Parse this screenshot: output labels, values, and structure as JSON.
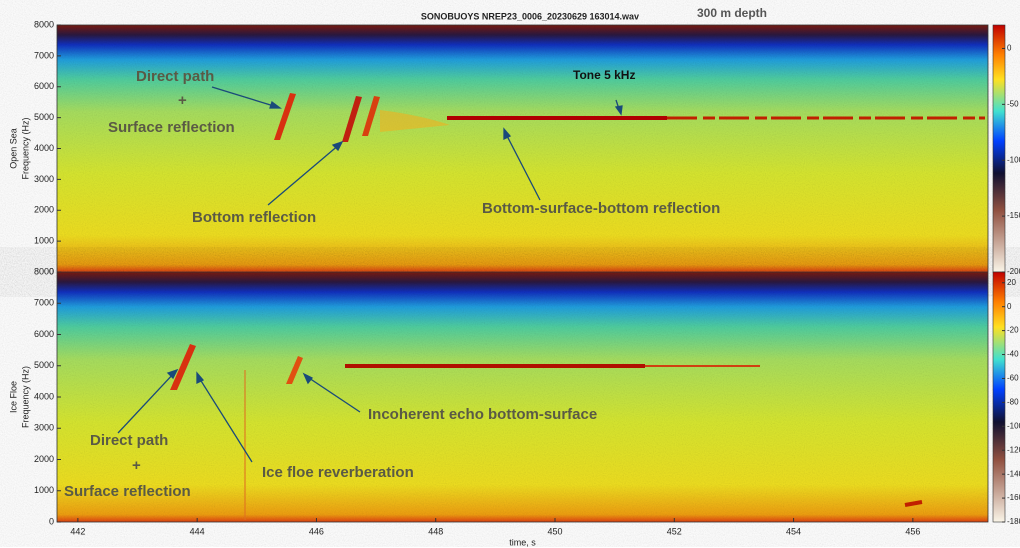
{
  "chart_data": [
    {
      "type": "spectrogram",
      "title": "SONOBUOYS NREP23_0006_20230629 163014.wav",
      "subtitle": "300 m depth",
      "panel_label": "Open Sea",
      "ylabel": "Frequency (Hz)",
      "xlim": [
        441.65,
        457.26
      ],
      "ylim": [
        0,
        8000
      ],
      "yticks": [
        0,
        1000,
        2000,
        3000,
        4000,
        5000,
        6000,
        7000,
        8000
      ],
      "clim": [
        -200,
        21
      ],
      "cticks": [
        0,
        -50,
        -100,
        -150,
        -200
      ],
      "annotations": [
        "Direct path",
        "+",
        "Surface reflection",
        "Tone 5 kHz",
        "Bottom reflection",
        "Bottom-surface-bottom reflection"
      ]
    },
    {
      "type": "spectrogram",
      "panel_label": "Ice Floe",
      "ylabel": "Frequency (Hz)",
      "xlabel": "time, s",
      "xlim": [
        441.65,
        457.26
      ],
      "xticks": [
        442,
        444,
        446,
        448,
        450,
        452,
        454,
        456
      ],
      "ylim": [
        0,
        8000
      ],
      "yticks": [
        0,
        1000,
        2000,
        3000,
        4000,
        5000,
        6000,
        7000,
        8000
      ],
      "clim": [
        -180,
        29
      ],
      "cticks": [
        20,
        0,
        -20,
        -40,
        -60,
        -80,
        -100,
        -120,
        -140,
        -160,
        -180
      ],
      "annotations": [
        "Direct path",
        "+",
        "Surface reflection",
        "Ice floe reverberation",
        "Incoherent echo bottom-surface"
      ]
    }
  ]
}
